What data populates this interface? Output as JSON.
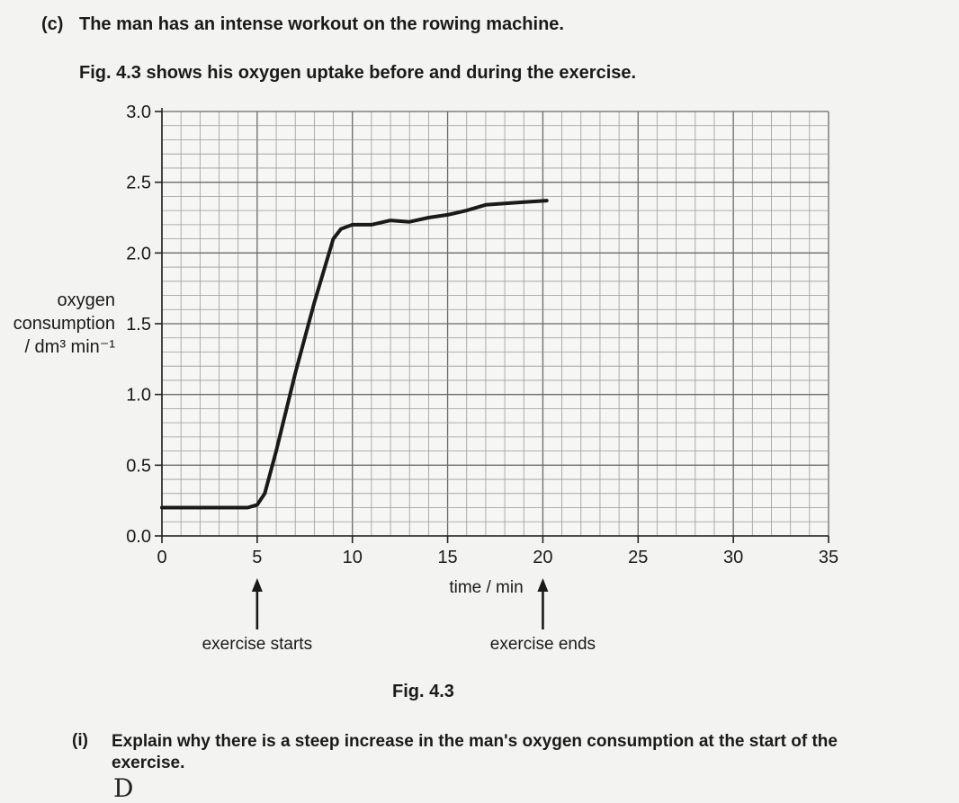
{
  "question": {
    "label": "(c)",
    "text": "The man has an intense workout on the rowing machine.",
    "intro": "Fig. 4.3 shows his oxygen uptake before and during the exercise."
  },
  "chart_data": {
    "type": "line",
    "xlabel": "time / min",
    "ylabel": [
      "oxygen",
      "consumption",
      "/ dm³ min⁻¹"
    ],
    "xlim": [
      0,
      35
    ],
    "ylim": [
      0.0,
      3.0
    ],
    "x_ticks": [
      "0",
      "5",
      "10",
      "15",
      "20",
      "25",
      "30",
      "35"
    ],
    "y_ticks": [
      "0.0",
      "0.5",
      "1.0",
      "1.5",
      "2.0",
      "2.5",
      "3.0"
    ],
    "grid": true,
    "series": [
      {
        "x": [
          0,
          1,
          2,
          3,
          4,
          4.5,
          5,
          5.4,
          6,
          7,
          8,
          9,
          9.4,
          10,
          11,
          12,
          13,
          14,
          15,
          16,
          17,
          18,
          19,
          20.2
        ],
        "y": [
          0.2,
          0.2,
          0.2,
          0.2,
          0.2,
          0.2,
          0.22,
          0.3,
          0.6,
          1.15,
          1.65,
          2.1,
          2.17,
          2.2,
          2.2,
          2.23,
          2.22,
          2.25,
          2.27,
          2.3,
          2.34,
          2.35,
          2.36,
          2.37
        ],
        "color": "#1a1a1a"
      }
    ],
    "annotations": {
      "start_x": 5,
      "start_label": "exercise starts",
      "end_x": 20,
      "end_label": "exercise ends"
    }
  },
  "figure_caption": "Fig. 4.3",
  "part": {
    "label": "(i)",
    "text": "Explain why there is a steep increase in the man's oxygen consumption at the start of the exercise."
  },
  "answer_start": "D"
}
